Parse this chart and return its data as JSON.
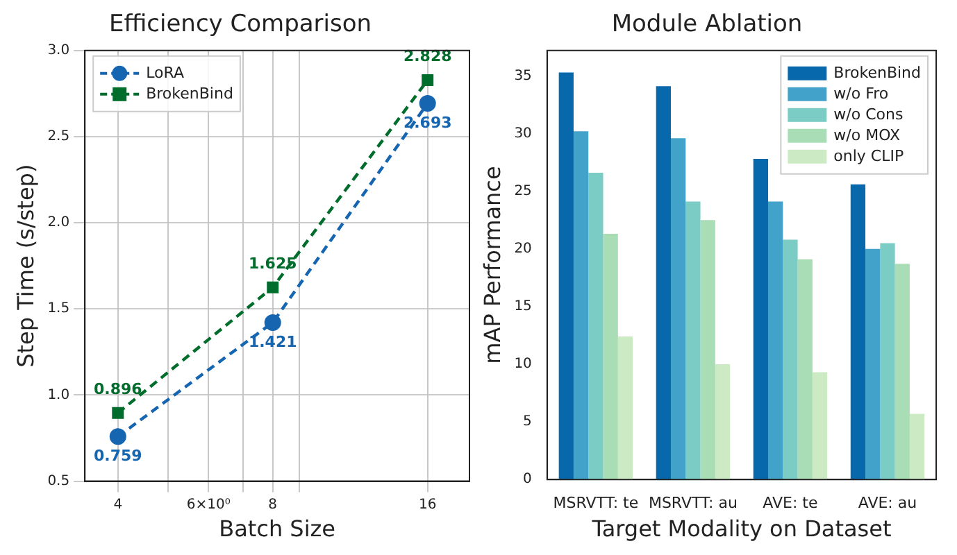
{
  "chart_data": [
    {
      "type": "line",
      "title": "Efficiency Comparison",
      "xlabel": "Batch Size",
      "ylabel": "Step Time (s/step)",
      "x": [
        4,
        8,
        16
      ],
      "series": [
        {
          "name": "LoRA",
          "color": "#1565b0",
          "marker": "circle",
          "values": [
            0.759,
            1.421,
            2.693
          ]
        },
        {
          "name": "BrokenBind",
          "color": "#006d2c",
          "marker": "square",
          "values": [
            0.896,
            1.625,
            2.828
          ]
        }
      ],
      "log": "x",
      "xlim": [
        3.45,
        19.3
      ],
      "xticks": [
        4,
        {
          "value": 5,
          "label": null
        },
        {
          "value": 6,
          "label": "6×10⁰"
        },
        {
          "value": 7,
          "label": null
        },
        8,
        {
          "value": 9,
          "label": null
        },
        16
      ],
      "ylim": [
        0.5,
        3.0
      ],
      "yticks": [
        0.5,
        {
          "value": 1,
          "label": "1.0"
        },
        1.5,
        {
          "value": 2,
          "label": "2.0"
        },
        2.5,
        {
          "value": 3,
          "label": "3.0"
        }
      ],
      "grid": true,
      "legend": "top left",
      "line_style": "dashed",
      "data_labels": true
    },
    {
      "type": "bar",
      "title": "Module Ablation",
      "xlabel": "Target Modality on Dataset",
      "ylabel": "mAP Performance",
      "categories": [
        "MSRVTT: te",
        "MSRVTT: au",
        "AVE: te",
        "AVE: au"
      ],
      "series": [
        {
          "name": "BrokenBind",
          "color": "#0868ac",
          "values": [
            35.3,
            34.1,
            27.8,
            25.6
          ]
        },
        {
          "name": "w/o Fro",
          "color": "#43a2ca",
          "values": [
            30.2,
            29.6,
            24.1,
            20.0
          ]
        },
        {
          "name": "w/o Cons",
          "color": "#7bccc4",
          "values": [
            26.6,
            24.1,
            20.8,
            20.5
          ]
        },
        {
          "name": "w/o MOX",
          "color": "#a8ddb5",
          "values": [
            21.3,
            22.5,
            19.1,
            18.7
          ]
        },
        {
          "name": "only CLIP",
          "color": "#ccebc5",
          "values": [
            12.4,
            10.0,
            9.3,
            5.7
          ]
        }
      ],
      "ylim": [
        0,
        37.2
      ],
      "yticks": [
        0,
        5,
        10,
        15,
        20,
        25,
        30,
        35
      ],
      "legend": "top right"
    }
  ]
}
